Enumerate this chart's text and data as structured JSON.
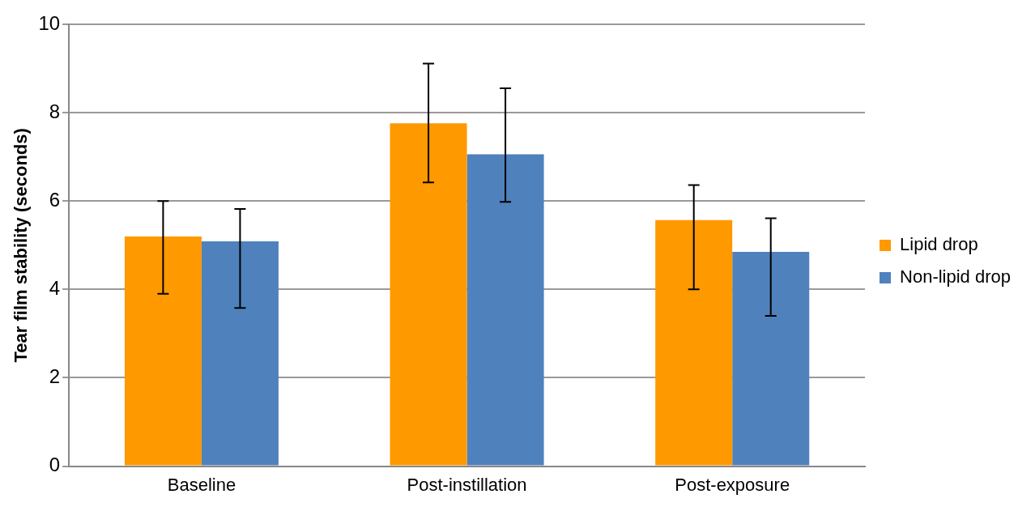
{
  "chart_data": {
    "type": "bar",
    "ylabel": "Tear film stability (seconds)",
    "categories": [
      "Baseline",
      "Post-instillation",
      "Post-exposure"
    ],
    "series": [
      {
        "name": "Lipid drop",
        "color": "#ff9900",
        "values": [
          5.2,
          7.76,
          5.57
        ],
        "errors": [
          [
            3.9,
            6.0
          ],
          [
            6.42,
            9.11
          ],
          [
            4.0,
            6.36
          ]
        ]
      },
      {
        "name": "Non-lipid drop",
        "color": "#4f81bd",
        "values": [
          5.09,
          7.06,
          4.85
        ],
        "errors": [
          [
            3.58,
            5.82
          ],
          [
            5.98,
            8.55
          ],
          [
            3.4,
            5.61
          ]
        ]
      }
    ],
    "ylim": [
      0,
      10
    ],
    "yticks": [
      0,
      2,
      4,
      6,
      8,
      10
    ],
    "grid": "y",
    "legend": "right"
  }
}
